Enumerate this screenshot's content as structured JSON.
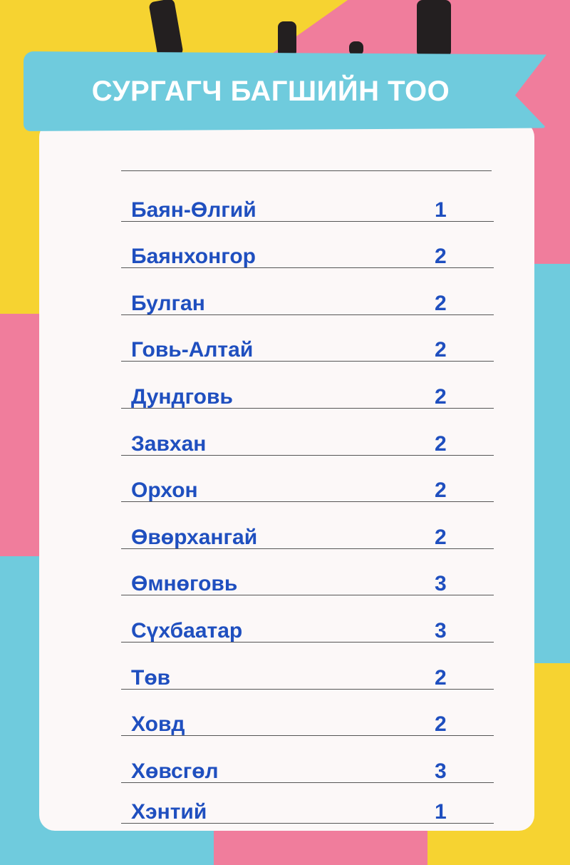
{
  "title": "СУРГАГЧ БАГШИЙН ТОО",
  "colors": {
    "yellow": "#f6d331",
    "pink": "#f07d9c",
    "blue": "#6fcbdd",
    "text": "#1f4fbf"
  },
  "rows": [
    {
      "name": "Баян-Өлгий",
      "value": "1"
    },
    {
      "name": "Баянхонгор",
      "value": "2"
    },
    {
      "name": "Булган",
      "value": "2"
    },
    {
      "name": "Говь-Алтай",
      "value": "2"
    },
    {
      "name": "Дундговь",
      "value": "2"
    },
    {
      "name": "Завхан",
      "value": "2"
    },
    {
      "name": "Орхон",
      "value": "2"
    },
    {
      "name": "Өвөрхангай",
      "value": "2"
    },
    {
      "name": "Өмнөговь",
      "value": "3"
    },
    {
      "name": "Сүхбаатар",
      "value": "3"
    },
    {
      "name": "Төв",
      "value": "2"
    },
    {
      "name": "Ховд",
      "value": "2"
    },
    {
      "name": "Хөвсгөл",
      "value": "3"
    },
    {
      "name": "Хэнтий",
      "value": "1"
    }
  ]
}
